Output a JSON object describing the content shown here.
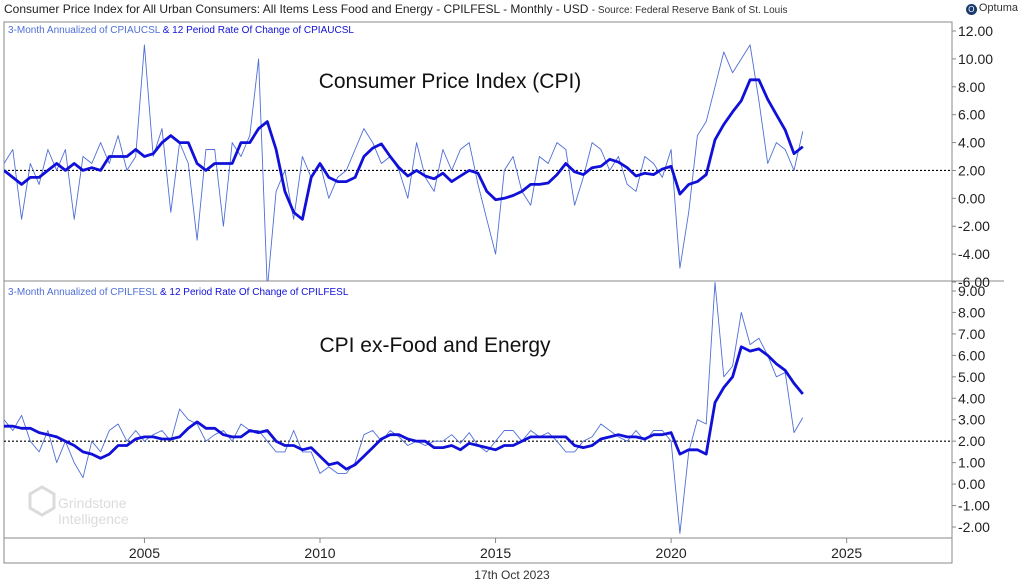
{
  "header": {
    "title": "Consumer Price Index for All Urban Consumers: All Items Less Food and Energy - CPILFESL - Monthly - USD",
    "source": "- Source: Federal Reserve Bank of St. Louis",
    "logo": "Optuma"
  },
  "footer": {
    "date": "17th Oct 2023"
  },
  "watermark": {
    "line1": "Grindstone",
    "line2": "Intelligence"
  },
  "colors": {
    "thin_line": "#4f6fd6",
    "thick_line": "#1010d8",
    "reference": "#000000",
    "grid_border": "#888888"
  },
  "chart_data": [
    {
      "type": "line",
      "title": "Consumer Price Index (CPI)",
      "legend": {
        "series1": "3-Month Annualized of CPIAUCSL",
        "connector": "&",
        "series2": "12 Period Rate Of Change of CPIAUCSL"
      },
      "x_ticks": [
        "2005",
        "2010",
        "2015",
        "2020",
        "2025"
      ],
      "y_ticks": [
        "12.00",
        "10.00",
        "8.00",
        "6.00",
        "4.00",
        "2.00",
        "0.00",
        "-2.00",
        "-4.00",
        "-6.00"
      ],
      "ylim": [
        -6,
        12
      ],
      "reference_line": 2.0,
      "series": [
        {
          "style": "thin",
          "x": [
            2001.0,
            2001.25,
            2001.5,
            2001.75,
            2002.0,
            2002.25,
            2002.5,
            2002.75,
            2003.0,
            2003.25,
            2003.5,
            2003.75,
            2004.0,
            2004.25,
            2004.5,
            2004.75,
            2005.0,
            2005.25,
            2005.5,
            2005.75,
            2006.0,
            2006.25,
            2006.5,
            2006.75,
            2007.0,
            2007.25,
            2007.5,
            2007.75,
            2008.0,
            2008.25,
            2008.5,
            2008.75,
            2009.0,
            2009.25,
            2009.5,
            2009.75,
            2010.0,
            2010.25,
            2010.5,
            2010.75,
            2011.0,
            2011.25,
            2011.5,
            2011.75,
            2012.0,
            2012.25,
            2012.5,
            2012.75,
            2013.0,
            2013.25,
            2013.5,
            2013.75,
            2014.0,
            2014.25,
            2014.5,
            2014.75,
            2015.0,
            2015.25,
            2015.5,
            2015.75,
            2016.0,
            2016.25,
            2016.5,
            2016.75,
            2017.0,
            2017.25,
            2017.5,
            2017.75,
            2018.0,
            2018.25,
            2018.5,
            2018.75,
            2019.0,
            2019.25,
            2019.5,
            2019.75,
            2020.0,
            2020.25,
            2020.5,
            2020.75,
            2021.0,
            2021.25,
            2021.5,
            2021.75,
            2022.0,
            2022.25,
            2022.5,
            2022.75,
            2023.0,
            2023.25,
            2023.5,
            2023.75
          ],
          "values": [
            2.5,
            3.5,
            -1.5,
            2.5,
            1.0,
            3.5,
            2.0,
            3.5,
            -1.5,
            3.0,
            2.5,
            4.0,
            2.5,
            4.5,
            2.0,
            3.0,
            11.0,
            3.0,
            5.0,
            -1.0,
            4.0,
            2.5,
            -3.0,
            3.5,
            3.5,
            -2.0,
            4.0,
            3.0,
            4.5,
            10.0,
            -6.5,
            0.5,
            2.0,
            -1.5,
            3.0,
            1.5,
            2.5,
            0.0,
            1.5,
            2.0,
            3.5,
            5.0,
            4.0,
            2.5,
            3.0,
            2.0,
            0.0,
            4.0,
            1.5,
            0.5,
            3.5,
            2.0,
            3.5,
            4.0,
            1.0,
            -1.5,
            -4.0,
            2.0,
            3.0,
            0.5,
            -0.5,
            3.0,
            2.5,
            4.0,
            3.5,
            -0.5,
            1.5,
            4.0,
            3.5,
            2.0,
            3.0,
            1.0,
            0.5,
            3.0,
            2.5,
            1.5,
            3.5,
            -5.0,
            -1.0,
            4.5,
            5.5,
            8.0,
            10.5,
            9.0,
            10.0,
            11.0,
            7.0,
            2.5,
            4.0,
            3.5,
            2.0,
            4.8
          ]
        },
        {
          "style": "thick",
          "x": [
            2001.0,
            2001.25,
            2001.5,
            2001.75,
            2002.0,
            2002.25,
            2002.5,
            2002.75,
            2003.0,
            2003.25,
            2003.5,
            2003.75,
            2004.0,
            2004.25,
            2004.5,
            2004.75,
            2005.0,
            2005.25,
            2005.5,
            2005.75,
            2006.0,
            2006.25,
            2006.5,
            2006.75,
            2007.0,
            2007.25,
            2007.5,
            2007.75,
            2008.0,
            2008.25,
            2008.5,
            2008.75,
            2009.0,
            2009.25,
            2009.5,
            2009.75,
            2010.0,
            2010.25,
            2010.5,
            2010.75,
            2011.0,
            2011.25,
            2011.5,
            2011.75,
            2012.0,
            2012.25,
            2012.5,
            2012.75,
            2013.0,
            2013.25,
            2013.5,
            2013.75,
            2014.0,
            2014.25,
            2014.5,
            2014.75,
            2015.0,
            2015.25,
            2015.5,
            2015.75,
            2016.0,
            2016.25,
            2016.5,
            2016.75,
            2017.0,
            2017.25,
            2017.5,
            2017.75,
            2018.0,
            2018.25,
            2018.5,
            2018.75,
            2019.0,
            2019.25,
            2019.5,
            2019.75,
            2020.0,
            2020.25,
            2020.5,
            2020.75,
            2021.0,
            2021.25,
            2021.5,
            2021.75,
            2022.0,
            2022.25,
            2022.5,
            2022.75,
            2023.0,
            2023.25,
            2023.5,
            2023.75
          ],
          "values": [
            2.0,
            1.5,
            1.0,
            1.5,
            1.5,
            2.0,
            2.5,
            2.0,
            2.5,
            2.0,
            2.2,
            2.0,
            3.0,
            3.0,
            3.0,
            3.5,
            3.0,
            3.2,
            4.0,
            4.5,
            4.0,
            4.0,
            2.5,
            2.0,
            2.5,
            2.5,
            2.5,
            4.0,
            4.0,
            5.0,
            5.5,
            3.5,
            0.5,
            -1.0,
            -1.5,
            1.5,
            2.5,
            1.5,
            1.2,
            1.2,
            1.5,
            3.0,
            3.6,
            3.9,
            3.0,
            2.2,
            1.6,
            2.0,
            1.6,
            1.4,
            1.8,
            1.2,
            1.6,
            2.0,
            1.8,
            0.5,
            -0.1,
            0.0,
            0.2,
            0.5,
            1.0,
            1.0,
            1.1,
            1.7,
            2.5,
            1.9,
            1.7,
            2.2,
            2.3,
            2.8,
            2.6,
            2.2,
            1.6,
            1.8,
            1.7,
            2.1,
            2.3,
            0.3,
            1.0,
            1.2,
            1.7,
            4.2,
            5.3,
            6.2,
            7.0,
            8.5,
            8.5,
            7.1,
            6.0,
            4.9,
            3.2,
            3.7
          ]
        }
      ]
    },
    {
      "type": "line",
      "title": "CPI ex-Food and Energy",
      "legend": {
        "series1": "3-Month Annualized of CPILFESL",
        "connector": "&",
        "series2": "12 Period Rate Of Change of CPILFESL"
      },
      "x_ticks": [
        "2005",
        "2010",
        "2015",
        "2020",
        "2025"
      ],
      "y_ticks": [
        "9.00",
        "8.00",
        "7.00",
        "6.00",
        "5.00",
        "4.00",
        "3.00",
        "2.00",
        "1.00",
        "0.00",
        "-1.00",
        "-2.00"
      ],
      "ylim": [
        -2.5,
        9.5
      ],
      "reference_line": 2.0,
      "series": [
        {
          "style": "thin",
          "x": [
            2001.0,
            2001.25,
            2001.5,
            2001.75,
            2002.0,
            2002.25,
            2002.5,
            2002.75,
            2003.0,
            2003.25,
            2003.5,
            2003.75,
            2004.0,
            2004.25,
            2004.5,
            2004.75,
            2005.0,
            2005.25,
            2005.5,
            2005.75,
            2006.0,
            2006.25,
            2006.5,
            2006.75,
            2007.0,
            2007.25,
            2007.5,
            2007.75,
            2008.0,
            2008.25,
            2008.5,
            2008.75,
            2009.0,
            2009.25,
            2009.5,
            2009.75,
            2010.0,
            2010.25,
            2010.5,
            2010.75,
            2011.0,
            2011.25,
            2011.5,
            2011.75,
            2012.0,
            2012.25,
            2012.5,
            2012.75,
            2013.0,
            2013.25,
            2013.5,
            2013.75,
            2014.0,
            2014.25,
            2014.5,
            2014.75,
            2015.0,
            2015.25,
            2015.5,
            2015.75,
            2016.0,
            2016.25,
            2016.5,
            2016.75,
            2017.0,
            2017.25,
            2017.5,
            2017.75,
            2018.0,
            2018.25,
            2018.5,
            2018.75,
            2019.0,
            2019.25,
            2019.5,
            2019.75,
            2020.0,
            2020.25,
            2020.5,
            2020.75,
            2021.0,
            2021.25,
            2021.5,
            2021.75,
            2022.0,
            2022.25,
            2022.5,
            2022.75,
            2023.0,
            2023.25,
            2023.5,
            2023.75
          ],
          "values": [
            3.0,
            2.5,
            3.2,
            2.0,
            1.5,
            2.5,
            1.0,
            2.0,
            1.0,
            0.3,
            2.0,
            1.5,
            2.5,
            2.8,
            2.0,
            2.5,
            2.0,
            2.3,
            2.5,
            2.0,
            3.5,
            3.0,
            2.8,
            2.0,
            2.3,
            2.5,
            2.0,
            2.8,
            2.5,
            2.5,
            2.0,
            1.5,
            1.5,
            2.5,
            1.5,
            1.5,
            0.5,
            0.8,
            0.5,
            0.5,
            1.0,
            2.3,
            2.5,
            2.0,
            2.5,
            2.2,
            1.8,
            2.0,
            1.8,
            2.0,
            2.0,
            2.3,
            1.9,
            2.4,
            1.8,
            1.5,
            2.0,
            2.5,
            2.5,
            2.0,
            2.5,
            2.2,
            2.4,
            2.0,
            1.5,
            1.5,
            2.0,
            2.2,
            2.8,
            2.5,
            2.2,
            2.0,
            2.5,
            2.0,
            2.5,
            2.5,
            2.0,
            -2.3,
            1.5,
            3.0,
            2.8,
            9.4,
            5.0,
            5.5,
            8.0,
            6.5,
            6.8,
            6.0,
            5.0,
            5.2,
            2.4,
            3.1
          ]
        },
        {
          "style": "thick",
          "x": [
            2001.0,
            2001.25,
            2001.5,
            2001.75,
            2002.0,
            2002.25,
            2002.5,
            2002.75,
            2003.0,
            2003.25,
            2003.5,
            2003.75,
            2004.0,
            2004.25,
            2004.5,
            2004.75,
            2005.0,
            2005.25,
            2005.5,
            2005.75,
            2006.0,
            2006.25,
            2006.5,
            2006.75,
            2007.0,
            2007.25,
            2007.5,
            2007.75,
            2008.0,
            2008.25,
            2008.5,
            2008.75,
            2009.0,
            2009.25,
            2009.5,
            2009.75,
            2010.0,
            2010.25,
            2010.5,
            2010.75,
            2011.0,
            2011.25,
            2011.5,
            2011.75,
            2012.0,
            2012.25,
            2012.5,
            2012.75,
            2013.0,
            2013.25,
            2013.5,
            2013.75,
            2014.0,
            2014.25,
            2014.5,
            2014.75,
            2015.0,
            2015.25,
            2015.5,
            2015.75,
            2016.0,
            2016.25,
            2016.5,
            2016.75,
            2017.0,
            2017.25,
            2017.5,
            2017.75,
            2018.0,
            2018.25,
            2018.5,
            2018.75,
            2019.0,
            2019.25,
            2019.5,
            2019.75,
            2020.0,
            2020.25,
            2020.5,
            2020.75,
            2021.0,
            2021.25,
            2021.5,
            2021.75,
            2022.0,
            2022.25,
            2022.5,
            2022.75,
            2023.0,
            2023.25,
            2023.5,
            2023.75
          ],
          "values": [
            2.7,
            2.7,
            2.6,
            2.6,
            2.4,
            2.3,
            2.2,
            2.0,
            1.8,
            1.5,
            1.4,
            1.2,
            1.4,
            1.8,
            1.8,
            2.1,
            2.2,
            2.2,
            2.1,
            2.1,
            2.2,
            2.6,
            2.9,
            2.6,
            2.6,
            2.3,
            2.2,
            2.2,
            2.5,
            2.4,
            2.5,
            2.0,
            1.8,
            1.8,
            1.6,
            1.7,
            1.3,
            0.9,
            1.0,
            0.7,
            0.9,
            1.3,
            1.7,
            2.1,
            2.3,
            2.3,
            2.1,
            2.0,
            2.0,
            1.7,
            1.7,
            1.8,
            1.6,
            1.9,
            1.8,
            1.7,
            1.6,
            1.8,
            1.8,
            2.0,
            2.2,
            2.2,
            2.2,
            2.2,
            2.2,
            1.8,
            1.7,
            1.8,
            2.1,
            2.2,
            2.3,
            2.2,
            2.2,
            2.1,
            2.3,
            2.3,
            2.4,
            1.4,
            1.6,
            1.6,
            1.4,
            3.8,
            4.5,
            5.0,
            6.4,
            6.2,
            6.3,
            6.0,
            5.6,
            5.3,
            4.7,
            4.2
          ]
        }
      ]
    }
  ]
}
